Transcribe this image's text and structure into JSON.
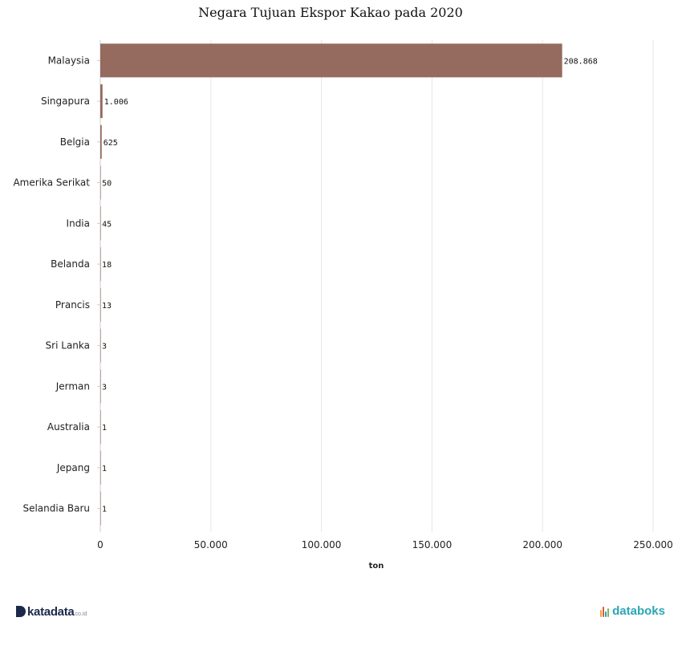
{
  "chart_data": {
    "type": "bar",
    "orientation": "horizontal",
    "title": "Negara Tujuan Ekspor Kakao pada 2020",
    "xlabel": "ton",
    "ylabel": "",
    "categories": [
      "Malaysia",
      "Singapura",
      "Belgia",
      "Amerika Serikat",
      "India",
      "Belanda",
      "Prancis",
      "Sri Lanka",
      "Jerman",
      "Australia",
      "Jepang",
      "Selandia Baru"
    ],
    "values": [
      208868,
      1006,
      625,
      50,
      45,
      18,
      13,
      3,
      3,
      1,
      1,
      1
    ],
    "value_labels": [
      "208.868",
      "1.006",
      "625",
      "50",
      "45",
      "18",
      "13",
      "3",
      "3",
      "1",
      "1",
      "1"
    ],
    "xlim": [
      0,
      250000
    ],
    "xticks": [
      0,
      50000,
      100000,
      150000,
      200000,
      250000
    ],
    "xtick_labels": [
      "0",
      "50.000",
      "100.000",
      "150.000",
      "200.000",
      "250.000"
    ],
    "grid": true,
    "bar_color": "#956a5f"
  },
  "footer": {
    "left_brand": "katadata",
    "left_suffix": "co.id",
    "right_brand": "databoks"
  }
}
